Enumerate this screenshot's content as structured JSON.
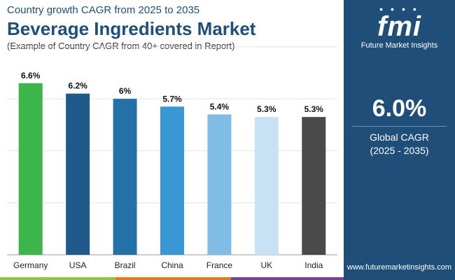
{
  "header": {
    "subtitle": "Country growth CAGR from 2025 to 2035",
    "title": "Beverage Ingredients Market",
    "note": "(Example of Country CAGR from 40+ covered in Report)"
  },
  "chart_data": {
    "type": "bar",
    "title": "Beverage Ingredients Market",
    "categories": [
      "Germany",
      "USA",
      "Brazil",
      "China",
      "France",
      "UK",
      "India"
    ],
    "values": [
      6.6,
      6.2,
      6.0,
      5.7,
      5.4,
      5.3,
      5.3
    ],
    "value_labels": [
      "6.6%",
      "6.2%",
      "6%",
      "5.7%",
      "5.4%",
      "5.3%",
      "5.3%"
    ],
    "colors": [
      "#3cb54a",
      "#1f5a8a",
      "#2471a8",
      "#3a97d6",
      "#7fbde6",
      "#c6e2f4",
      "#4a4a4a"
    ],
    "ylim": [
      0,
      7
    ],
    "grid": true,
    "xlabel": "",
    "ylabel": ""
  },
  "side_panel": {
    "logo_text": "fmi",
    "brand_name": "Future Market Insights",
    "global_cagr_value": "6.0%",
    "global_cagr_label": "Global CAGR",
    "global_cagr_period": "(2025 - 2035)",
    "website": "www.futuremarketinsights.com"
  },
  "theme": {
    "panel_color": "#1f4e79",
    "title_color": "#1f4e79",
    "strip_colors": [
      "#8cc63f",
      "#e87722",
      "#7b3f98"
    ]
  }
}
